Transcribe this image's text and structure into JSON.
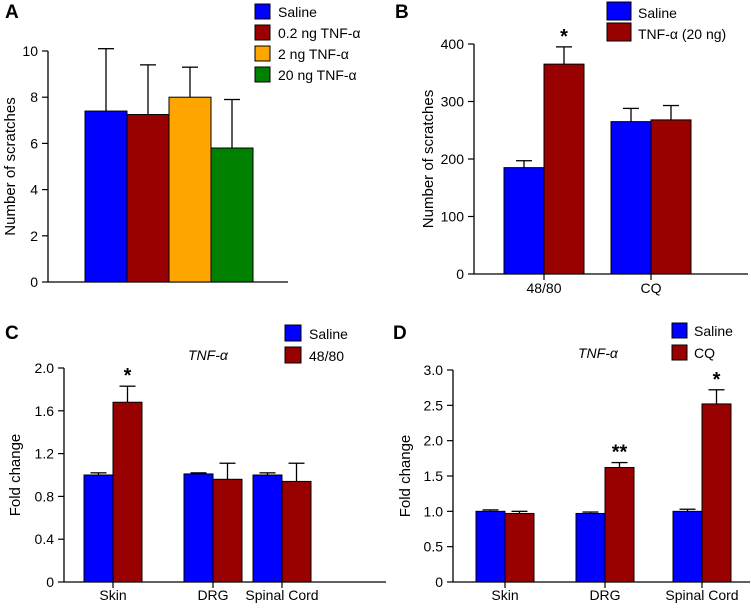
{
  "colors": {
    "blue": "#0000ff",
    "darkred": "#990000",
    "orange": "#ffa500",
    "green": "#008000",
    "axis": "#000000"
  },
  "chart_data": [
    {
      "panel": "A",
      "type": "bar",
      "title": "",
      "xlabel": "",
      "ylabel": "Number of scratches",
      "ylim": [
        0,
        10
      ],
      "yticks": [
        "0",
        "2",
        "4",
        "6",
        "8",
        "10"
      ],
      "categories": [
        ""
      ],
      "legend_position": "top-right",
      "series": [
        {
          "name": "Saline",
          "color": "#0000ff",
          "values": [
            7.4
          ],
          "errors": [
            2.7
          ],
          "sig": [
            ""
          ]
        },
        {
          "name": "0.2 ng TNF-α",
          "color": "#990000",
          "values": [
            7.25
          ],
          "errors": [
            2.15
          ],
          "sig": [
            ""
          ]
        },
        {
          "name": "2 ng TNF-α",
          "color": "#ffa500",
          "values": [
            8.0
          ],
          "errors": [
            1.3
          ],
          "sig": [
            ""
          ]
        },
        {
          "name": "20 ng TNF-α",
          "color": "#008000",
          "values": [
            5.8
          ],
          "errors": [
            2.1
          ],
          "sig": [
            ""
          ]
        }
      ]
    },
    {
      "panel": "B",
      "type": "bar",
      "title": "",
      "xlabel": "",
      "ylabel": "Number of scratches",
      "ylim": [
        0,
        400
      ],
      "yticks": [
        "0",
        "100",
        "200",
        "300",
        "400"
      ],
      "categories": [
        "48/80",
        "CQ"
      ],
      "legend_position": "top-right",
      "series": [
        {
          "name": "Saline",
          "color": "#0000ff",
          "values": [
            185,
            265
          ],
          "errors": [
            12,
            23
          ],
          "sig": [
            "",
            ""
          ]
        },
        {
          "name": "TNF-α (20 ng)",
          "color": "#990000",
          "values": [
            365,
            268
          ],
          "errors": [
            30,
            25
          ],
          "sig": [
            "*",
            ""
          ]
        }
      ]
    },
    {
      "panel": "C",
      "type": "bar",
      "title": "TNF-α",
      "xlabel": "",
      "ylabel": "Fold change",
      "ylim": [
        0,
        2.0
      ],
      "yticks": [
        "0",
        "0.4",
        "0.8",
        "1.2",
        "1.6",
        "2.0"
      ],
      "categories": [
        "Skin",
        "DRG",
        "Spinal Cord"
      ],
      "legend_position": "top-right",
      "series": [
        {
          "name": "Saline",
          "color": "#0000ff",
          "values": [
            1.0,
            1.01,
            1.0
          ],
          "errors": [
            0.02,
            0.01,
            0.02
          ],
          "sig": [
            "",
            "",
            ""
          ]
        },
        {
          "name": "48/80",
          "color": "#990000",
          "values": [
            1.68,
            0.96,
            0.94
          ],
          "errors": [
            0.15,
            0.15,
            0.17
          ],
          "sig": [
            "*",
            "",
            ""
          ]
        }
      ]
    },
    {
      "panel": "D",
      "type": "bar",
      "title": "TNF-α",
      "xlabel": "",
      "ylabel": "Fold change",
      "ylim": [
        0,
        3.0
      ],
      "yticks": [
        "0",
        "0.5",
        "1.0",
        "1.5",
        "2.0",
        "2.5",
        "3.0"
      ],
      "categories": [
        "Skin",
        "DRG",
        "Spinal Cord"
      ],
      "legend_position": "top-right",
      "series": [
        {
          "name": "Saline",
          "color": "#0000ff",
          "values": [
            1.0,
            0.97,
            1.0
          ],
          "errors": [
            0.02,
            0.02,
            0.03
          ],
          "sig": [
            "",
            "",
            ""
          ]
        },
        {
          "name": "CQ",
          "color": "#990000",
          "values": [
            0.97,
            1.62,
            2.52
          ],
          "errors": [
            0.03,
            0.07,
            0.2
          ],
          "sig": [
            "",
            "**",
            "*"
          ]
        }
      ]
    }
  ]
}
